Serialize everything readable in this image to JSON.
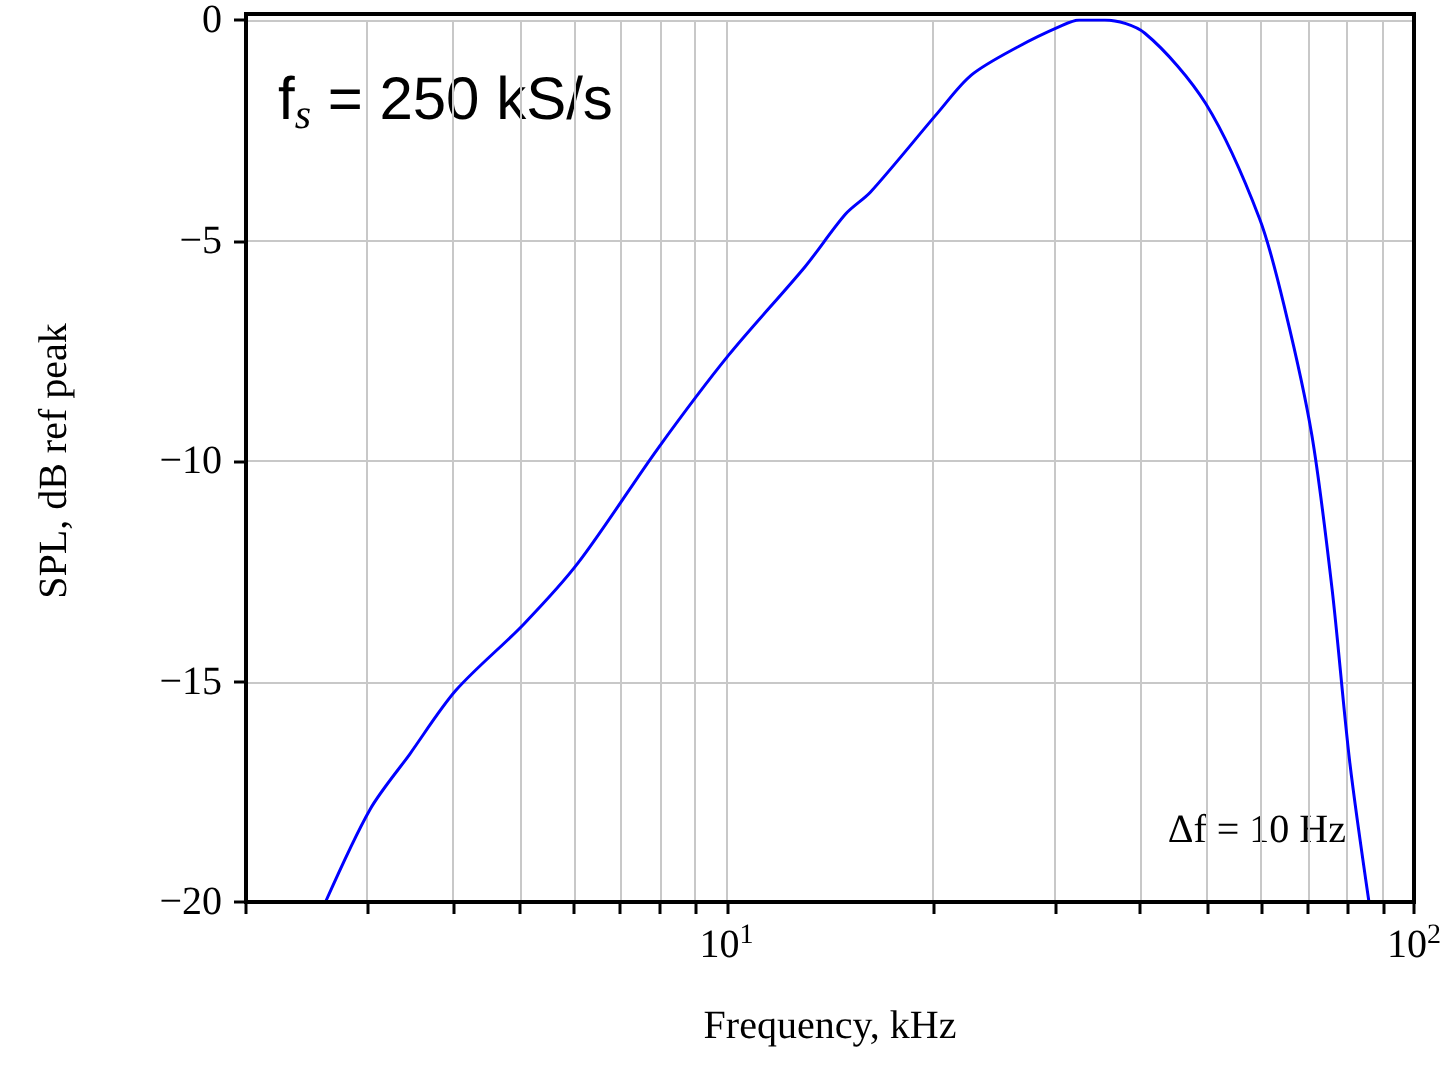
{
  "chart_data": {
    "type": "line",
    "xlabel": "Frequency, kHz",
    "ylabel": "SPL, dB ref peak",
    "annotations": [
      "f$_{s}$ = 250 kS/s",
      "Δf = 10 Hz"
    ],
    "series": [
      {
        "color": "#0000ff",
        "x": [
          2.61,
          3.03,
          3.46,
          4.04,
          5.07,
          6.09,
          7.96,
          10.07,
          13.0,
          14.9,
          16.2,
          20.3,
          22.7,
          26.6,
          30.5,
          32.6,
          35.5,
          40.6,
          49.8,
          59.6,
          65,
          71,
          76,
          80.6,
          86
        ],
        "values": [
          -20,
          -17.9,
          -16.65,
          -15.2,
          -13.7,
          -12.3,
          -9.7,
          -7.6,
          -5.6,
          -4.4,
          -3.9,
          -2.1,
          -1.25,
          -0.6,
          -0.15,
          0,
          0,
          -0.3,
          -1.9,
          -4.5,
          -6.6,
          -9.4,
          -12.9,
          -16.8,
          -20
        ]
      }
    ],
    "log": "x",
    "xlim": [
      2,
      100
    ],
    "ylim": [
      -20,
      0
    ],
    "xticks": [
      {
        "value": 2,
        "label": null
      },
      {
        "value": 3,
        "label": null
      },
      {
        "value": 4,
        "label": null
      },
      {
        "value": 5,
        "label": null
      },
      {
        "value": 6,
        "label": null
      },
      {
        "value": 7,
        "label": null
      },
      {
        "value": 8,
        "label": null
      },
      {
        "value": 9,
        "label": null
      },
      {
        "value": 10,
        "label": "10$^{1}$"
      },
      {
        "value": 20,
        "label": null
      },
      {
        "value": 30,
        "label": null
      },
      {
        "value": 40,
        "label": null
      },
      {
        "value": 50,
        "label": null
      },
      {
        "value": 60,
        "label": null
      },
      {
        "value": 70,
        "label": null
      },
      {
        "value": 80,
        "label": null
      },
      {
        "value": 90,
        "label": null
      },
      {
        "value": 100,
        "label": "10$^{2}$"
      }
    ],
    "yticks": [
      -20,
      -15,
      -10,
      -5,
      0
    ],
    "grid": true,
    "marker": "none",
    "line_style": "solid"
  }
}
